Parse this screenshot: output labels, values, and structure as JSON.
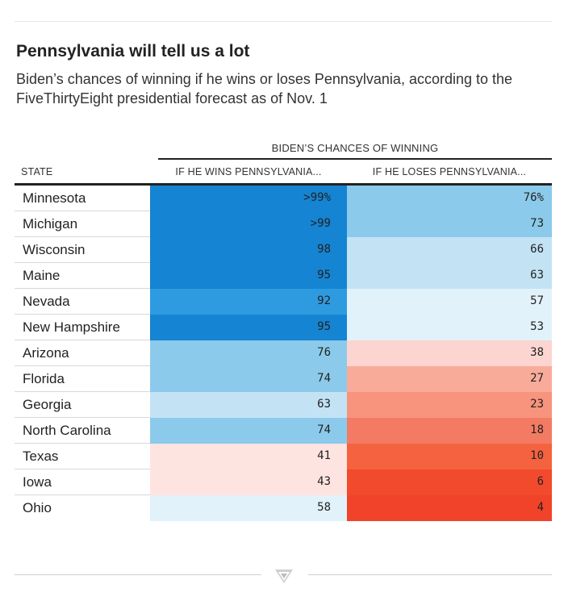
{
  "title": "Pennsylvania will tell us a lot",
  "subtitle": "Biden’s chances of winning if he wins or loses Pennsylvania, according to the FiveThirtyEight presidential forecast as of Nov. 1",
  "table": {
    "group_header": "BIDEN’S CHANCES OF WINNING",
    "col_state": "STATE",
    "col_win": "IF HE WINS PENNSYLVANIA...",
    "col_lose": "IF HE LOSES PENNSYLVANIA..."
  },
  "colors": {
    "blue_dark": "#1584d2",
    "blue_mid": "#2e9be0",
    "blue_light": "#8ccaeb",
    "blue_pale": "#c3e3f5",
    "blue_faint": "#e2f2fb",
    "red_faint": "#fde4e1",
    "red_pale": "#fcd5d0",
    "red_light": "#f9ab9a",
    "red_mid": "#f8937e",
    "red_strong": "#f47b63",
    "red_vivid": "#f5623f",
    "red_deep": "#f24a2d",
    "red_dark": "#f0432a"
  },
  "chart_data": {
    "type": "table",
    "title": "Pennsylvania will tell us a lot",
    "columns": [
      "STATE",
      "IF HE WINS PENNSYLVANIA...",
      "IF HE LOSES PENNSYLVANIA..."
    ],
    "rows": [
      {
        "state": "Minnesota",
        "win": ">99%",
        "lose": "76%",
        "win_value": 99,
        "lose_value": 76
      },
      {
        "state": "Michigan",
        "win": ">99",
        "lose": "73",
        "win_value": 99,
        "lose_value": 73
      },
      {
        "state": "Wisconsin",
        "win": "98",
        "lose": "66",
        "win_value": 98,
        "lose_value": 66
      },
      {
        "state": "Maine",
        "win": "95",
        "lose": "63",
        "win_value": 95,
        "lose_value": 63
      },
      {
        "state": "Nevada",
        "win": "92",
        "lose": "57",
        "win_value": 92,
        "lose_value": 57
      },
      {
        "state": "New Hampshire",
        "win": "95",
        "lose": "53",
        "win_value": 95,
        "lose_value": 53
      },
      {
        "state": "Arizona",
        "win": "76",
        "lose": "38",
        "win_value": 76,
        "lose_value": 38
      },
      {
        "state": "Florida",
        "win": "74",
        "lose": "27",
        "win_value": 74,
        "lose_value": 27
      },
      {
        "state": "Georgia",
        "win": "63",
        "lose": "23",
        "win_value": 63,
        "lose_value": 23
      },
      {
        "state": "North Carolina",
        "win": "74",
        "lose": "18",
        "win_value": 74,
        "lose_value": 18
      },
      {
        "state": "Texas",
        "win": "41",
        "lose": "10",
        "win_value": 41,
        "lose_value": 10
      },
      {
        "state": "Iowa",
        "win": "43",
        "lose": "6",
        "win_value": 43,
        "lose_value": 6
      },
      {
        "state": "Ohio",
        "win": "58",
        "lose": "4",
        "win_value": 58,
        "lose_value": 4
      }
    ]
  }
}
